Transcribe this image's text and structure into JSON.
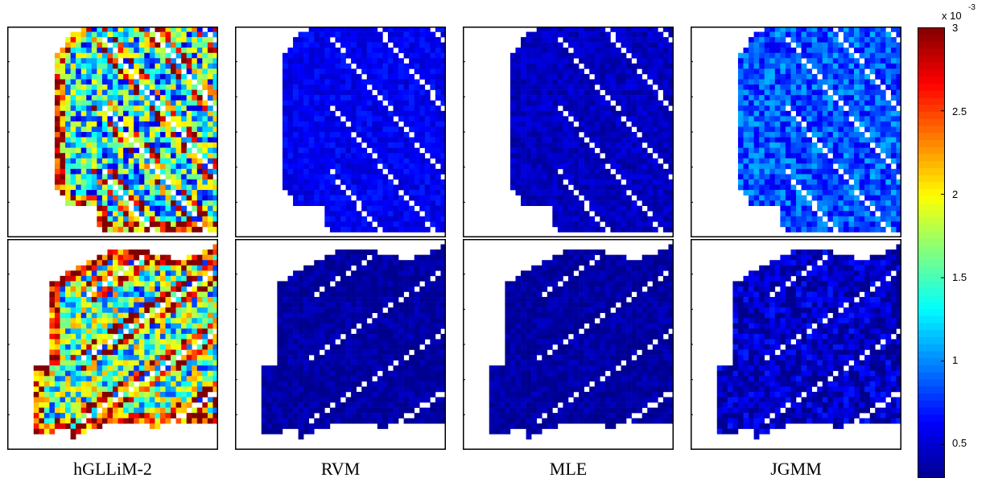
{
  "chart_data": {
    "type": "heatmap",
    "title": "",
    "layout": "2 rows x 4 columns of spatial uncertainty maps sharing one colorbar",
    "columns": [
      "hGLLiM-2",
      "RVM",
      "MLE",
      "JGMM"
    ],
    "rows": 2,
    "colormap": "jet",
    "colorbar": {
      "multiplier_base": "x 10",
      "multiplier_exponent": "-3",
      "ticks": [
        "3",
        "2.5",
        "2",
        "1.5",
        "1",
        "0.5"
      ],
      "range": [
        0.3,
        3.0
      ]
    },
    "panel_mean_levels": {
      "row1": {
        "hGLLiM-2": 1.3,
        "RVM": 0.6,
        "MLE": 0.45,
        "JGMM": 0.85
      },
      "row2": {
        "hGLLiM-2": 1.5,
        "RVM": 0.35,
        "MLE": 0.35,
        "JGMM": 0.45
      }
    },
    "axis_ticks_visible": false,
    "grid": false
  },
  "colors": {
    "jet": [
      "#00008f",
      "#0000ff",
      "#0080ff",
      "#00ffff",
      "#80ff80",
      "#ffff00",
      "#ff8000",
      "#ff0000",
      "#800000"
    ],
    "background": "#ffffff"
  }
}
